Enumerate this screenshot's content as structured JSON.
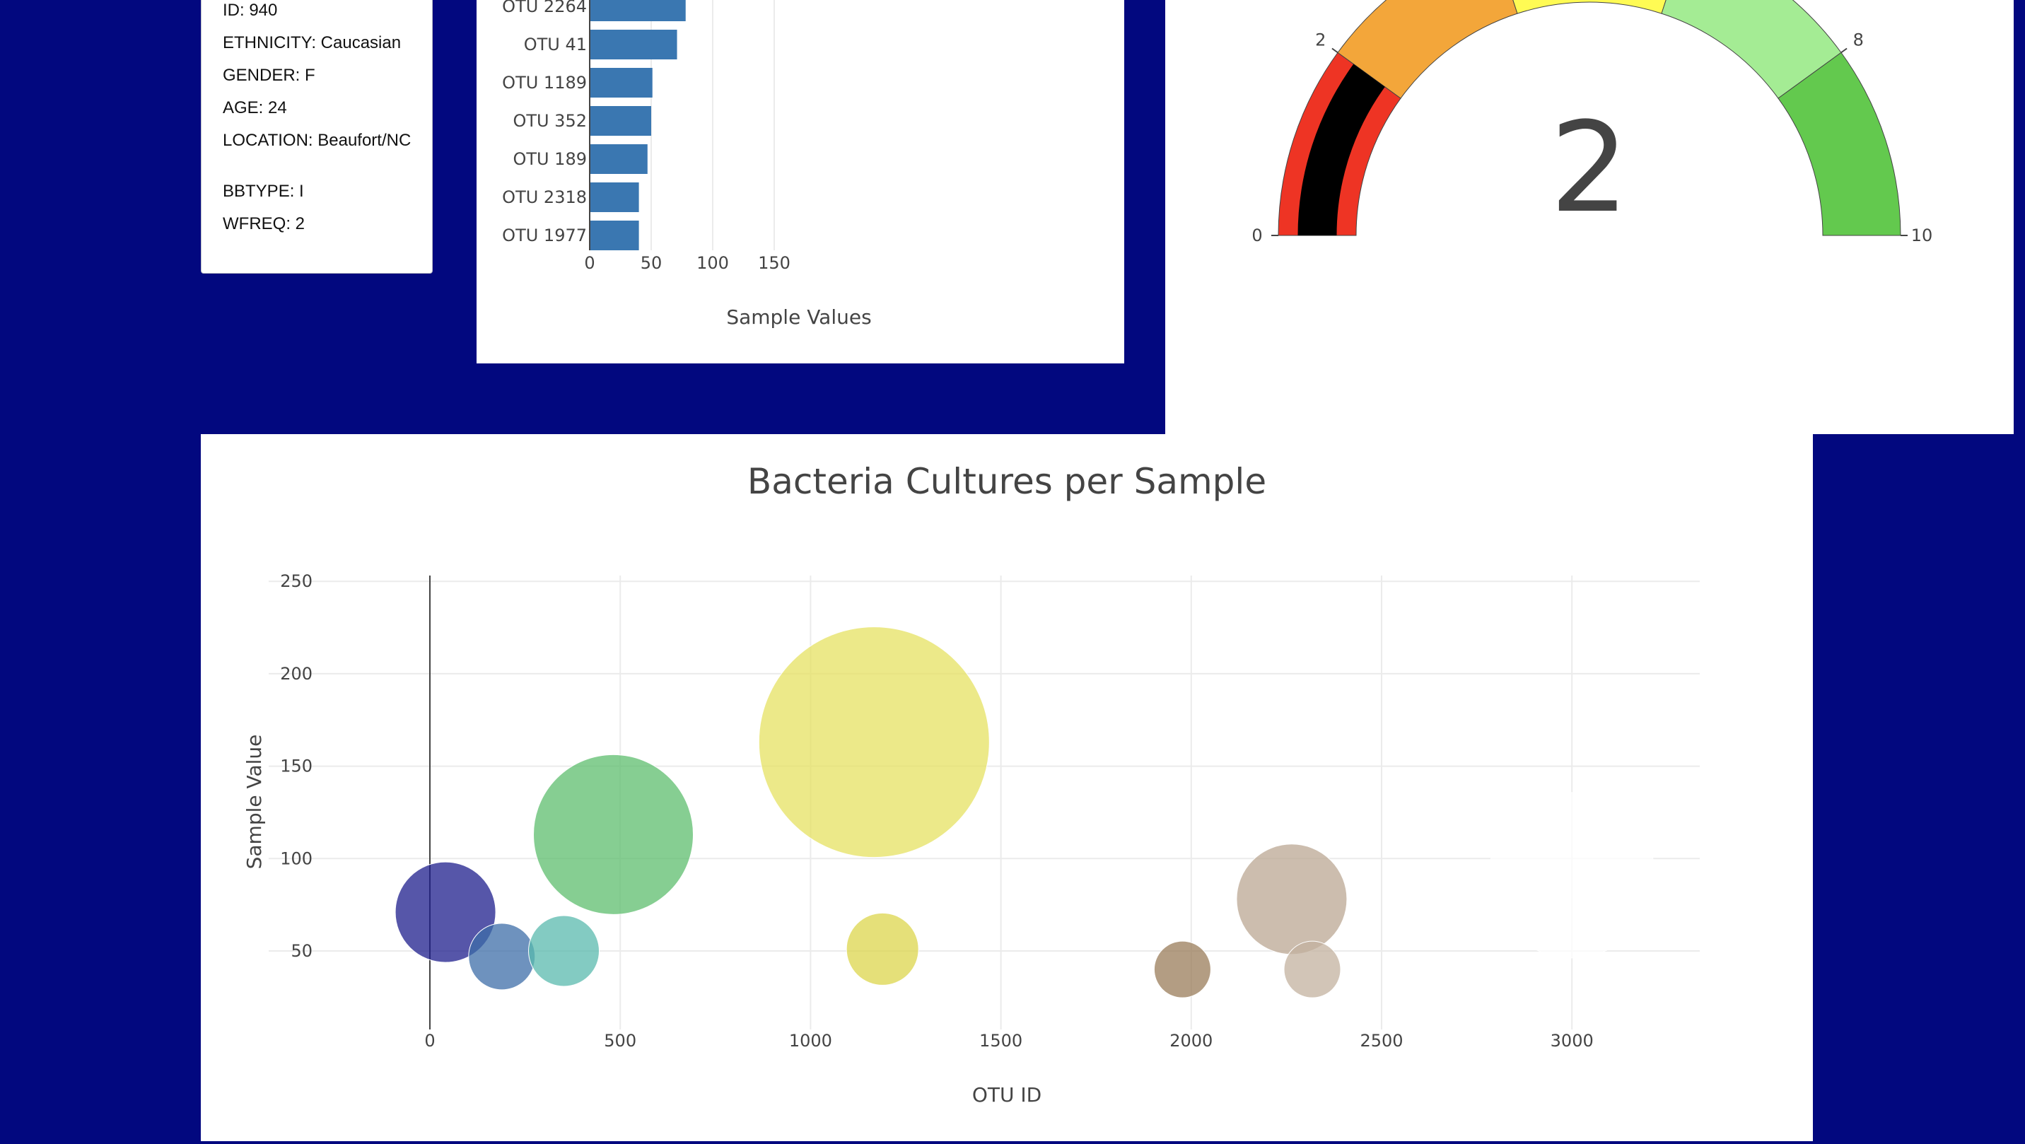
{
  "metadata": {
    "items": [
      "ID: 940",
      "ETHNICITY: Caucasian",
      "GENDER: F",
      "AGE: 24",
      "LOCATION: Beaufort/NC",
      "BBTYPE: I",
      "WFREQ: 2"
    ]
  },
  "chart_data": [
    {
      "type": "bar",
      "orientation": "horizontal",
      "categories": [
        "OTU 2264",
        "OTU 41",
        "OTU 1189",
        "OTU 352",
        "OTU 189",
        "OTU 2318",
        "OTU 1977"
      ],
      "values": [
        78,
        71,
        51,
        50,
        47,
        40,
        40
      ],
      "xlabel": "Sample Values",
      "xlim": [
        0,
        185
      ],
      "xticks": [
        0,
        50,
        100,
        150
      ],
      "color": "#3a77b1",
      "grid": true
    },
    {
      "type": "gauge",
      "value": 2,
      "value_label": "2",
      "range": [
        0,
        10
      ],
      "ticks": [
        0,
        2,
        8,
        10
      ],
      "bands": [
        {
          "from": 0,
          "to": 2,
          "color": "#ee3424"
        },
        {
          "from": 2,
          "to": 4,
          "color": "#f3a63a"
        },
        {
          "from": 4,
          "to": 6,
          "color": "#fffb54"
        },
        {
          "from": 6,
          "to": 8,
          "color": "#a4ec94"
        },
        {
          "from": 8,
          "to": 10,
          "color": "#63c94e"
        }
      ],
      "bar_color": "#000000"
    },
    {
      "type": "scatter",
      "title": "Bacteria Cultures per Sample",
      "xlabel": "OTU ID",
      "ylabel": "Sample Value",
      "xlim": [
        -180,
        3340
      ],
      "ylim": [
        10,
        255
      ],
      "xticks": [
        0,
        500,
        1000,
        1500,
        2000,
        2500,
        3000
      ],
      "yticks": [
        50,
        100,
        150,
        200,
        250
      ],
      "grid": true,
      "points": [
        {
          "x": 41,
          "y": 71,
          "size": 71,
          "color": "#1d1e8c"
        },
        {
          "x": 189,
          "y": 47,
          "size": 47,
          "color": "#3d6ea8"
        },
        {
          "x": 352,
          "y": 50,
          "size": 50,
          "color": "#5ab9ad"
        },
        {
          "x": 482,
          "y": 113,
          "size": 113,
          "color": "#5dbd6e"
        },
        {
          "x": 1167,
          "y": 163,
          "size": 163,
          "color": "#e5e261"
        },
        {
          "x": 1189,
          "y": 51,
          "size": 51,
          "color": "#dcd64c"
        },
        {
          "x": 1977,
          "y": 40,
          "size": 40,
          "color": "#9a7c5a"
        },
        {
          "x": 2264,
          "y": 78,
          "size": 78,
          "color": "#bba793"
        },
        {
          "x": 2318,
          "y": 40,
          "size": 40,
          "color": "#c3b29f"
        },
        {
          "x": 3000,
          "y": 91,
          "size": 117,
          "color": "#ffffff"
        }
      ]
    }
  ]
}
